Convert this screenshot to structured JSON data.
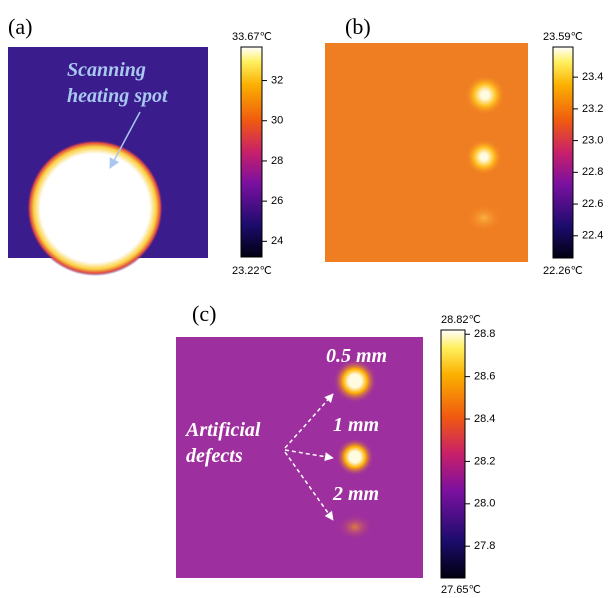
{
  "panels": [
    {
      "label": "(a)",
      "annotation": [
        "Scanning",
        "heating spot"
      ],
      "colorbar": {
        "max": {
          "value": 33.67,
          "label": "33.67℃"
        },
        "min": {
          "value": 23.22,
          "label": "23.22℃"
        },
        "ticks": [
          32,
          30,
          28,
          26,
          24
        ]
      }
    },
    {
      "label": "(b)",
      "colorbar": {
        "max": {
          "value": 23.59,
          "label": "23.59℃"
        },
        "min": {
          "value": 22.26,
          "label": "22.26℃"
        },
        "ticks": [
          23.4,
          23.2,
          {
            "value": 23,
            "label": "23.0"
          },
          22.8,
          22.6,
          22.4
        ]
      }
    },
    {
      "label": "(c)",
      "annotation": [
        "Artificial",
        "defects"
      ],
      "defects": [
        "0.5 mm",
        "1 mm",
        "2 mm"
      ],
      "colorbar": {
        "max": {
          "value": 28.82,
          "label": "28.82℃"
        },
        "min": {
          "value": 27.65,
          "label": "27.65℃"
        },
        "ticks": [
          28.8,
          28.6,
          28.4,
          28.2,
          {
            "value": 28,
            "label": "28.0"
          },
          27.8
        ]
      }
    }
  ]
}
